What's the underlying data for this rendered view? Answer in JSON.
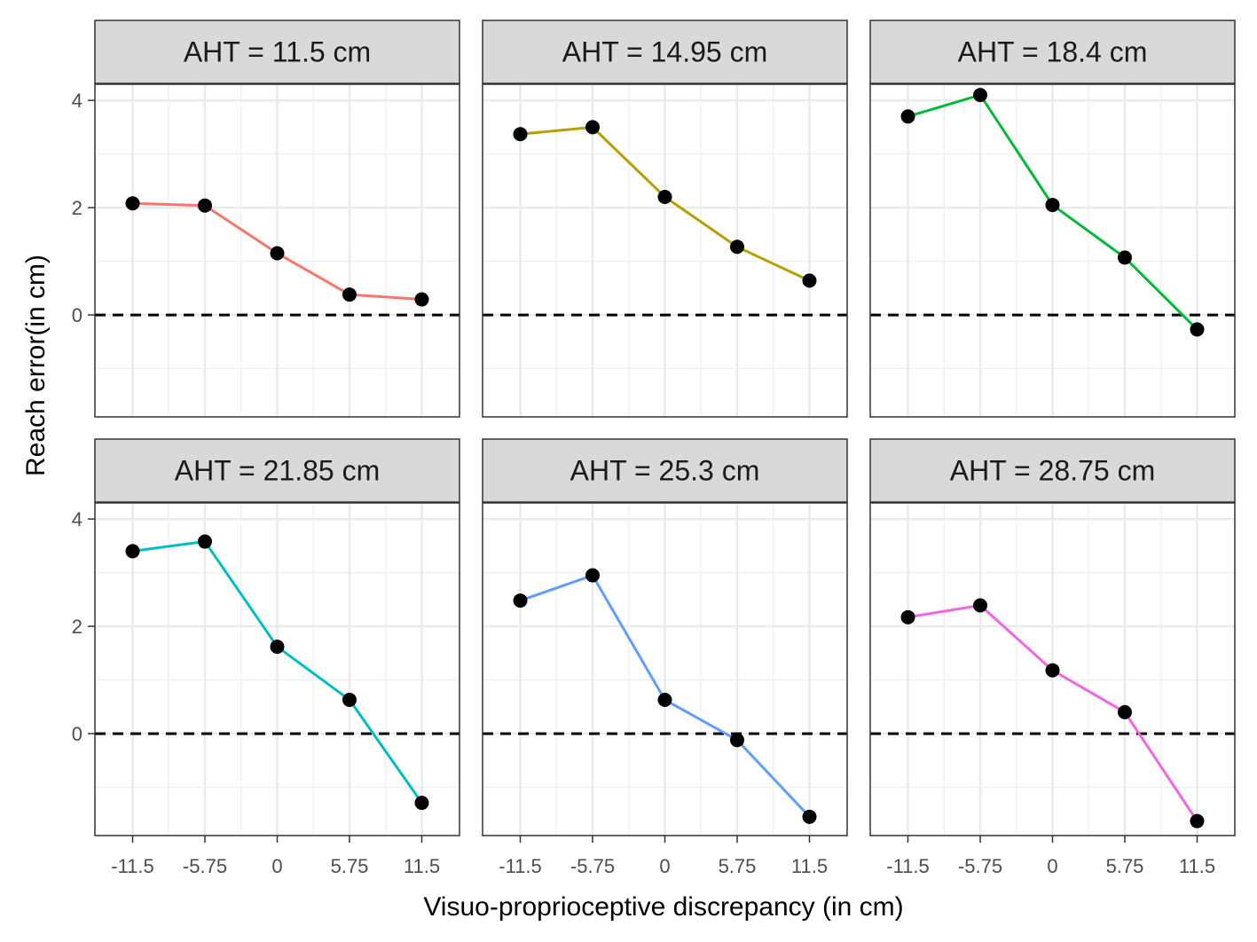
{
  "chart_data": {
    "type": "line",
    "layout": "facet-grid-2x3",
    "xlabel": "Visuo-proprioceptive discrepancy (in cm)",
    "ylabel": "Reach error(in cm)",
    "x": [
      -11.5,
      -5.75,
      0,
      5.75,
      11.5
    ],
    "x_tick_labels": [
      "-11.5",
      "-5.75",
      "0",
      "5.75",
      "11.5"
    ],
    "xlim": [
      -14.5,
      14.5
    ],
    "y_ticks": [
      0,
      2,
      4
    ],
    "y_tick_labels": [
      "0",
      "2",
      "4"
    ],
    "ylim": [
      -1.9,
      4.3
    ],
    "reference_line": {
      "y": 0,
      "style": "dashed"
    },
    "grid": true,
    "legend": "none",
    "point_color": "#000000",
    "series": [
      {
        "facet_label": "AHT = 11.5 cm",
        "color": "#F8766D",
        "values": [
          2.08,
          2.04,
          1.15,
          0.38,
          0.29
        ]
      },
      {
        "facet_label": "AHT = 14.95 cm",
        "color": "#B79F00",
        "values": [
          3.37,
          3.5,
          2.2,
          1.27,
          0.64
        ]
      },
      {
        "facet_label": "AHT = 18.4 cm",
        "color": "#00BA38",
        "values": [
          3.7,
          4.1,
          2.05,
          1.07,
          -0.27
        ]
      },
      {
        "facet_label": "AHT = 21.85 cm",
        "color": "#00BFC4",
        "values": [
          3.4,
          3.58,
          1.62,
          0.63,
          -1.29
        ]
      },
      {
        "facet_label": "AHT = 25.3 cm",
        "color": "#619CFF",
        "values": [
          2.48,
          2.95,
          0.63,
          -0.12,
          -1.55
        ]
      },
      {
        "facet_label": "AHT = 28.75 cm",
        "color": "#F564E3",
        "values": [
          2.17,
          2.39,
          1.18,
          0.4,
          -1.63
        ]
      }
    ]
  }
}
